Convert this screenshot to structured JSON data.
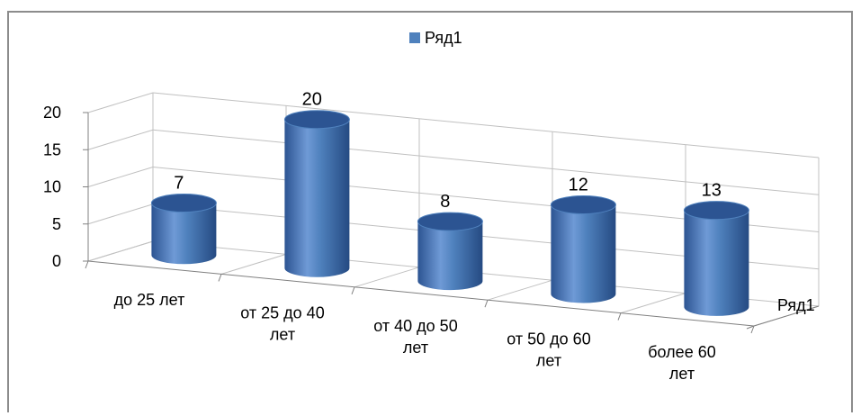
{
  "chart_data": {
    "type": "bar",
    "categories": [
      "до 25 лет",
      "от 25 до 40 лет",
      "от 40 до 50 лет",
      "от 50 до 60 лет",
      "более 60 лет"
    ],
    "category_lines": [
      [
        "до 25 лет"
      ],
      [
        "от 25 до 40",
        "лет"
      ],
      [
        "от 40 до 50",
        "лет"
      ],
      [
        "от 50 до 60",
        "лет"
      ],
      [
        "более 60",
        "лет"
      ]
    ],
    "series": [
      {
        "name": "Ряд1",
        "values": [
          7,
          20,
          8,
          12,
          13
        ]
      }
    ],
    "ylim": [
      0,
      20
    ],
    "yticks": [
      "0",
      "5",
      "10",
      "15",
      "20"
    ],
    "depth_axis_label": "Ряд1",
    "legend": {
      "label": "Ряд1",
      "position": "top"
    },
    "grid": true,
    "style": "3d-cylinder",
    "colors": {
      "bar": "#4f81bd",
      "bar_dark": "#2c5492",
      "bar_light": "#8fb2e2",
      "grid": "#c0c0c0",
      "axis": "#808080"
    }
  }
}
